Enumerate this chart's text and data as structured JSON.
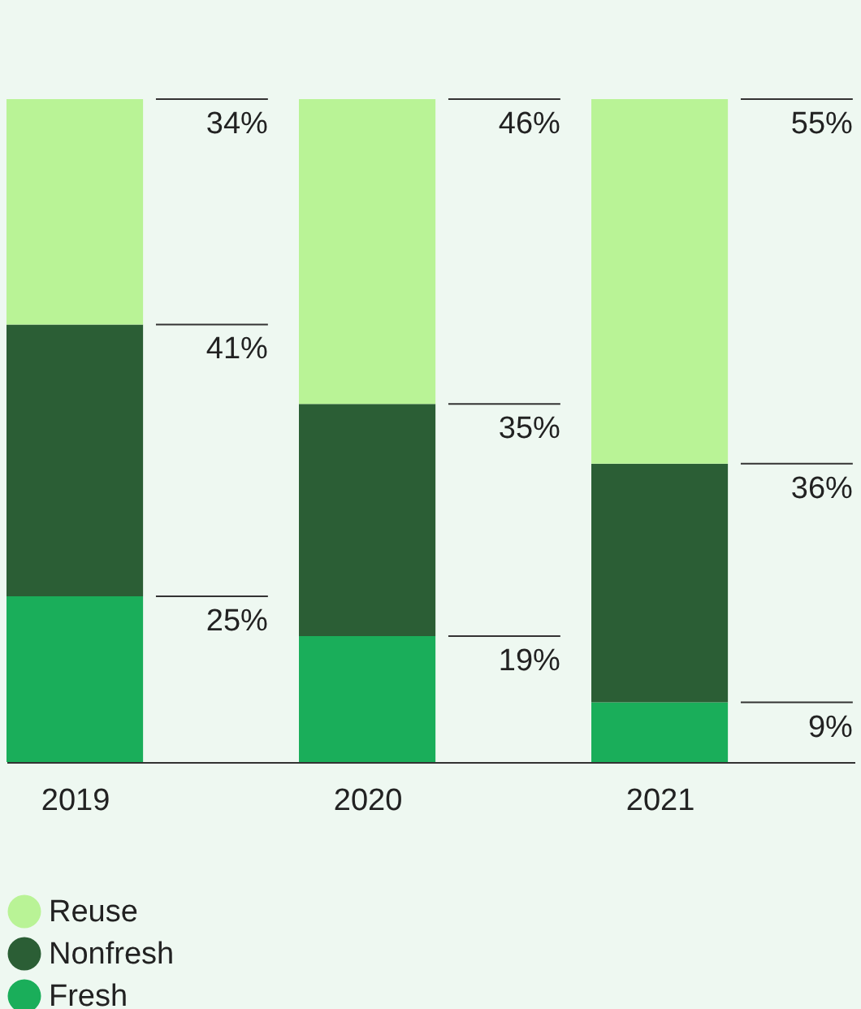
{
  "chart_data": {
    "type": "bar",
    "stacked": true,
    "categories": [
      "2019",
      "2020",
      "2021"
    ],
    "series": [
      {
        "name": "Fresh",
        "color": "#1aae5a",
        "values": [
          25,
          19,
          9
        ],
        "value_labels": [
          "25%",
          "19%",
          "9%"
        ]
      },
      {
        "name": "Nonfresh",
        "color": "#2b5e35",
        "values": [
          41,
          35,
          36
        ],
        "value_labels": [
          "41%",
          "35%",
          "36%"
        ]
      },
      {
        "name": "Reuse",
        "color": "#b9f396",
        "values": [
          34,
          46,
          55
        ],
        "value_labels": [
          "34%",
          "46%",
          "55%"
        ]
      }
    ],
    "legend": "bottom",
    "grid": false
  }
}
